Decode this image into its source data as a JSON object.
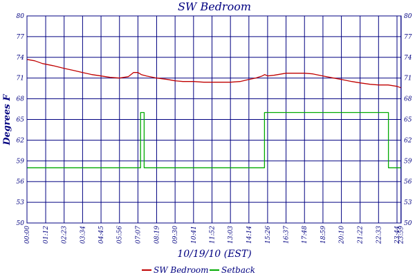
{
  "chart_data": {
    "type": "line",
    "title": "SW Bedroom",
    "xlabel": "10/19/10 (EST)",
    "ylabel": "Degrees F",
    "ylim": [
      50,
      80
    ],
    "yticks": [
      50,
      53,
      56,
      59,
      62,
      65,
      68,
      71,
      74,
      77,
      80
    ],
    "xlim": [
      0,
      1440
    ],
    "xtick_labels": [
      "00:00",
      "01:12",
      "02:23",
      "03:34",
      "04:45",
      "05:56",
      "07:07",
      "08:19",
      "09:30",
      "10:41",
      "11:52",
      "13:03",
      "14:14",
      "15:26",
      "16:37",
      "17:48",
      "18:59",
      "20:10",
      "21:22",
      "22:33",
      "23:44",
      "23:59"
    ],
    "xtick_minutes": [
      0,
      72,
      143,
      214,
      285,
      356,
      427,
      499,
      570,
      641,
      712,
      783,
      854,
      926,
      997,
      1068,
      1139,
      1210,
      1282,
      1353,
      1424,
      1439
    ],
    "grid": true,
    "legend_position": "bottom-center",
    "colors": {
      "axis": "#000080",
      "grid": "#000080",
      "sw_bedroom": "#c00000",
      "setback": "#00aa00"
    },
    "series": [
      {
        "name": "SW Bedroom",
        "color": "#c00000",
        "x": [
          0,
          30,
          60,
          100,
          143,
          180,
          214,
          250,
          285,
          320,
          356,
          390,
          410,
          427,
          440,
          460,
          499,
          540,
          570,
          600,
          641,
          680,
          712,
          750,
          783,
          820,
          854,
          880,
          905,
          915,
          926,
          950,
          997,
          1030,
          1068,
          1100,
          1139,
          1180,
          1210,
          1250,
          1282,
          1320,
          1353,
          1390,
          1424,
          1439
        ],
        "y": [
          73.7,
          73.5,
          73.1,
          72.8,
          72.4,
          72.1,
          71.8,
          71.5,
          71.3,
          71.1,
          71.0,
          71.2,
          71.8,
          71.8,
          71.5,
          71.3,
          71.0,
          70.8,
          70.6,
          70.5,
          70.5,
          70.4,
          70.4,
          70.4,
          70.4,
          70.5,
          70.8,
          71.0,
          71.3,
          71.5,
          71.3,
          71.4,
          71.7,
          71.7,
          71.7,
          71.6,
          71.3,
          71.0,
          70.8,
          70.5,
          70.3,
          70.1,
          70.0,
          70.0,
          69.8,
          69.6
        ]
      },
      {
        "name": "Setback",
        "color": "#00aa00",
        "x": [
          0,
          437,
          437,
          451,
          451,
          914,
          914,
          1391,
          1391,
          1439
        ],
        "y": [
          58,
          58,
          66,
          66,
          58,
          58,
          66,
          66,
          58,
          58
        ]
      }
    ]
  }
}
